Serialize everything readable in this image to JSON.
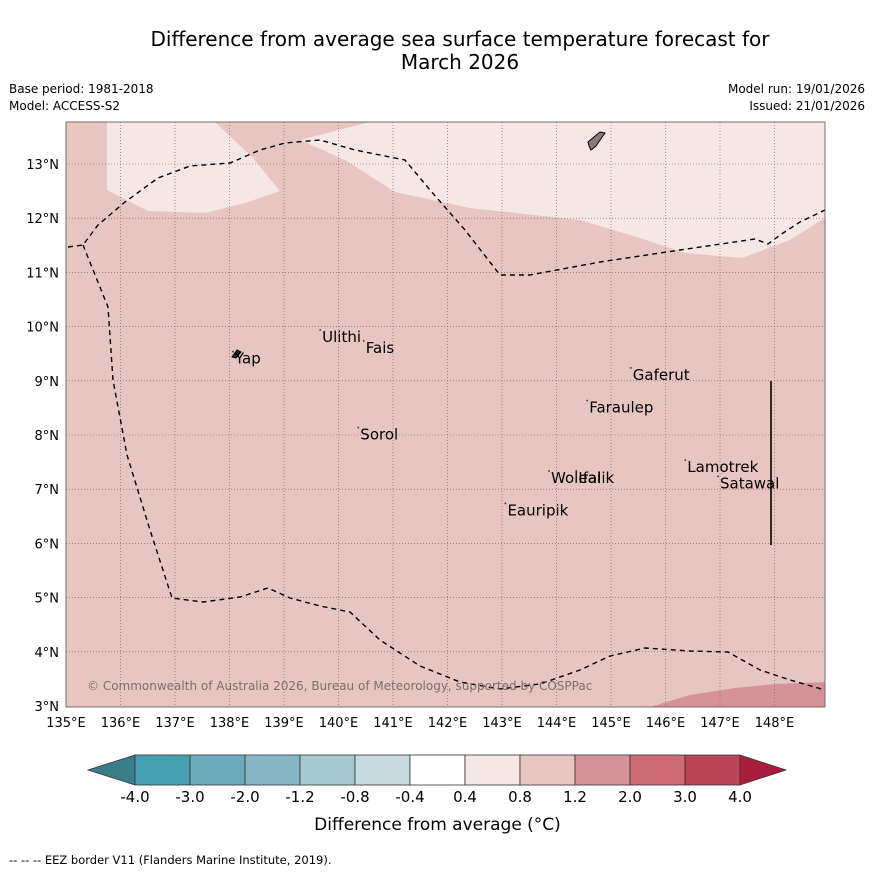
{
  "title_line1": "Difference from average sea surface temperature forecast for",
  "title_line2": "March 2026",
  "meta": {
    "base_period": "Base period: 1981-2018",
    "model": "Model: ACCESS-S2",
    "model_run": "Model run: 19/01/2026",
    "issued": "Issued: 21/01/2026"
  },
  "map": {
    "lon_ticks": [
      "135°E",
      "136°E",
      "137°E",
      "138°E",
      "139°E",
      "140°E",
      "141°E",
      "142°E",
      "143°E",
      "144°E",
      "145°E",
      "146°E",
      "147°E",
      "148°E"
    ],
    "lat_ticks": [
      "3°N",
      "4°N",
      "5°N",
      "6°N",
      "7°N",
      "8°N",
      "9°N",
      "10°N",
      "11°N",
      "12°N",
      "13°N"
    ],
    "places": [
      {
        "name": "Yap",
        "lon": 138.1,
        "lat": 9.5
      },
      {
        "name": "Ulithi",
        "lon": 139.7,
        "lat": 9.9
      },
      {
        "name": "Fais",
        "lon": 140.5,
        "lat": 9.7
      },
      {
        "name": "Sorol",
        "lon": 140.4,
        "lat": 8.1
      },
      {
        "name": "Gaferut",
        "lon": 145.4,
        "lat": 9.2
      },
      {
        "name": "Faraulep",
        "lon": 144.6,
        "lat": 8.6
      },
      {
        "name": "Woleai",
        "lon": 143.9,
        "lat": 7.3
      },
      {
        "name": "Ifalik",
        "lon": 144.4,
        "lat": 7.3
      },
      {
        "name": "Lamotrek",
        "lon": 146.4,
        "lat": 7.5
      },
      {
        "name": "Satawal",
        "lon": 147.0,
        "lat": 7.2
      },
      {
        "name": "Eauripik",
        "lon": 143.1,
        "lat": 6.7
      }
    ],
    "copyright": "© Commonwealth of Australia 2026, Bureau of Meteorology, supported by COSPPac",
    "colors": {
      "bg_0.8_1.2": "#e7c6c2",
      "light_0.4_0.8": "#f4e7e6",
      "warm_1.2_2.0": "#d6929b"
    }
  },
  "colorbar": {
    "labels": [
      "-4.0",
      "-3.0",
      "-2.0",
      "-1.2",
      "-0.8",
      "-0.4",
      "0.4",
      "0.8",
      "1.2",
      "2.0",
      "3.0",
      "4.0"
    ],
    "colors": [
      "#3b7d89",
      "#47a0b1",
      "#6aacbc",
      "#87b6c4",
      "#a6c9d0",
      "#c6d9dc",
      "#ffffff",
      "#f4e7e6",
      "#e7c6c2",
      "#d6929b",
      "#cc6b76",
      "#bd4457",
      "#a81d3b"
    ],
    "title": "Difference from average (°C)"
  },
  "footer": "-- -- -- EEZ border V11 (Flanders Marine Institute, 2019)."
}
